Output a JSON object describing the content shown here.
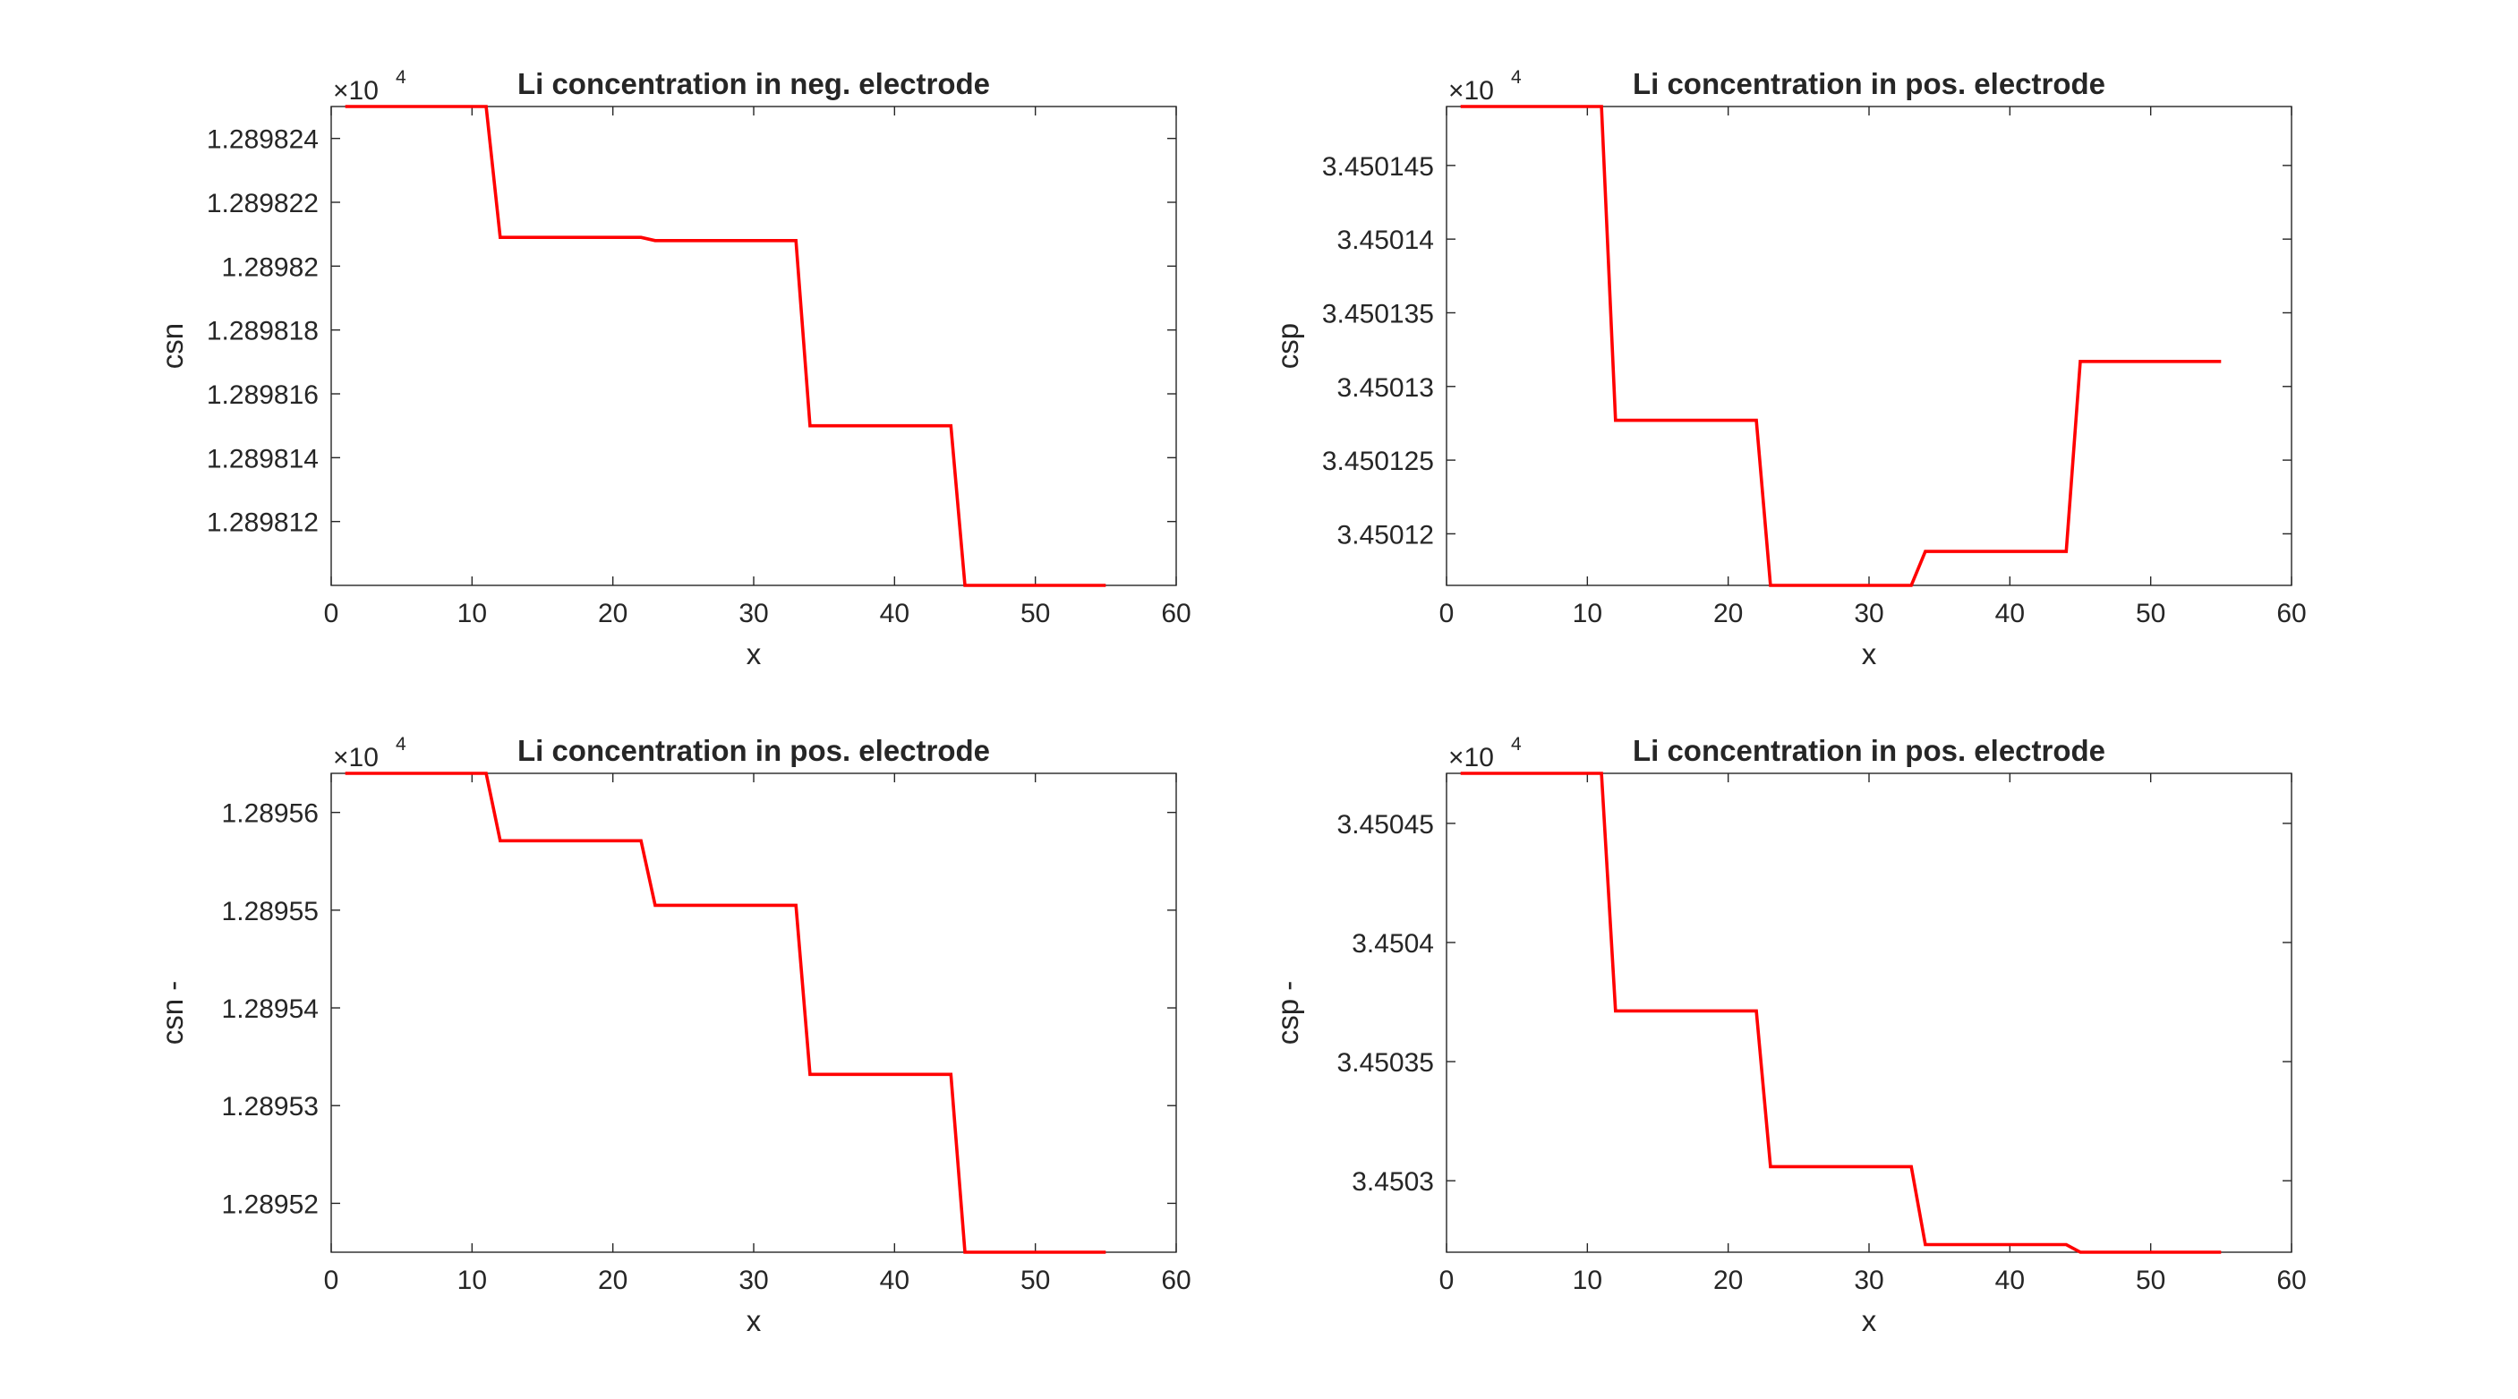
{
  "figure": {
    "background": "#ffffff",
    "axis_color": "#262626",
    "line_color": "#ff0000"
  },
  "chart_data": [
    {
      "type": "line",
      "title": "Li concentration in neg. electrode",
      "xlabel": "x",
      "ylabel": "csn",
      "y_multiplier": {
        "base": "×10",
        "exponent": "4"
      },
      "xlim": [
        0,
        60
      ],
      "ylim": [
        1.28981,
        1.289825
      ],
      "grid": false,
      "x_ticks": [
        0,
        10,
        20,
        30,
        40,
        50,
        60
      ],
      "x_tick_labels": [
        "0",
        "10",
        "20",
        "30",
        "40",
        "50",
        "60"
      ],
      "y_ticks": [
        1.289812,
        1.289814,
        1.289816,
        1.289818,
        1.28982,
        1.289822,
        1.289824
      ],
      "y_tick_labels": [
        "1.289812",
        "1.289814",
        "1.289816",
        "1.289818",
        "1.28982",
        "1.289822",
        "1.289824"
      ],
      "series": [
        {
          "color": "#ff0000",
          "x": [
            1,
            11,
            12,
            22,
            23,
            33,
            34,
            44,
            45,
            55
          ],
          "y": [
            1.289825,
            1.289825,
            1.2898209,
            1.2898209,
            1.2898208,
            1.2898208,
            1.289815,
            1.289815,
            1.28981,
            1.28981
          ]
        }
      ]
    },
    {
      "type": "line",
      "title": "Li concentration in pos. electrode",
      "xlabel": "x",
      "ylabel": "csp",
      "y_multiplier": {
        "base": "×10",
        "exponent": "4"
      },
      "xlim": [
        0,
        60
      ],
      "ylim": [
        3.4501165,
        3.450149
      ],
      "grid": false,
      "x_ticks": [
        0,
        10,
        20,
        30,
        40,
        50,
        60
      ],
      "x_tick_labels": [
        "0",
        "10",
        "20",
        "30",
        "40",
        "50",
        "60"
      ],
      "y_ticks": [
        3.45012,
        3.450125,
        3.45013,
        3.450135,
        3.45014,
        3.450145
      ],
      "y_tick_labels": [
        "3.45012",
        "3.450125",
        "3.45013",
        "3.450135",
        "3.45014",
        "3.450145"
      ],
      "series": [
        {
          "color": "#ff0000",
          "x": [
            1,
            11,
            12,
            22,
            23,
            33,
            34,
            44,
            45,
            55
          ],
          "y": [
            3.450149,
            3.450149,
            3.4501277,
            3.4501277,
            3.4501165,
            3.4501165,
            3.4501188,
            3.4501188,
            3.4501317,
            3.4501317
          ]
        }
      ]
    },
    {
      "type": "line",
      "title": "Li concentration in pos. electrode",
      "xlabel": "x",
      "ylabel": "csn -",
      "y_multiplier": {
        "base": "×10",
        "exponent": "4"
      },
      "xlim": [
        0,
        60
      ],
      "ylim": [
        1.289515,
        1.289564
      ],
      "grid": false,
      "x_ticks": [
        0,
        10,
        20,
        30,
        40,
        50,
        60
      ],
      "x_tick_labels": [
        "0",
        "10",
        "20",
        "30",
        "40",
        "50",
        "60"
      ],
      "y_ticks": [
        1.28952,
        1.28953,
        1.28954,
        1.28955,
        1.28956
      ],
      "y_tick_labels": [
        "1.28952",
        "1.28953",
        "1.28954",
        "1.28955",
        "1.28956"
      ],
      "series": [
        {
          "color": "#ff0000",
          "x": [
            1,
            11,
            12,
            22,
            23,
            33,
            34,
            44,
            45,
            55
          ],
          "y": [
            1.289564,
            1.289564,
            1.2895571,
            1.2895571,
            1.2895505,
            1.2895505,
            1.2895332,
            1.2895332,
            1.289515,
            1.289515
          ]
        }
      ]
    },
    {
      "type": "line",
      "title": "Li concentration in pos. electrode",
      "xlabel": "x",
      "ylabel": "csp -",
      "y_multiplier": {
        "base": "×10",
        "exponent": "4"
      },
      "xlim": [
        0,
        60
      ],
      "ylim": [
        3.45027,
        3.450471
      ],
      "grid": false,
      "x_ticks": [
        0,
        10,
        20,
        30,
        40,
        50,
        60
      ],
      "x_tick_labels": [
        "0",
        "10",
        "20",
        "30",
        "40",
        "50",
        "60"
      ],
      "y_ticks": [
        3.4503,
        3.45035,
        3.4504,
        3.45045
      ],
      "y_tick_labels": [
        "3.4503",
        "3.45035",
        "3.4504",
        "3.45045"
      ],
      "extra_y_tick_labels": [
        "3.4503",
        "3.45035",
        "3.4504",
        "3.45045"
      ],
      "series": [
        {
          "color": "#ff0000",
          "x": [
            1,
            11,
            12,
            22,
            23,
            33,
            34,
            44,
            45,
            55
          ],
          "y": [
            3.450471,
            3.450471,
            3.4503713,
            3.4503713,
            3.4503059,
            3.4503059,
            3.4502732,
            3.4502732,
            3.45027,
            3.45027
          ]
        }
      ]
    }
  ]
}
